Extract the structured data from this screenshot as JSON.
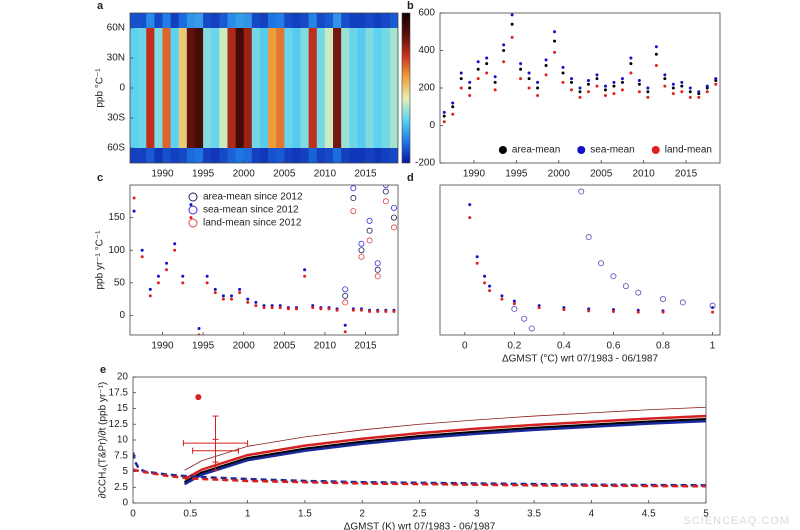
{
  "watermark": "SCIENCEAQ.COM",
  "chart_data": [
    {
      "panel": "a",
      "type": "heatmap",
      "x_edges": [
        1986,
        1987,
        1988,
        1989,
        1990,
        1991,
        1992,
        1993,
        1994,
        1995,
        1996,
        1997,
        1998,
        1999,
        2000,
        2001,
        2002,
        2003,
        2004,
        2005,
        2006,
        2007,
        2008,
        2009,
        2010,
        2011,
        2012,
        2013,
        2014,
        2015,
        2016,
        2017,
        2018,
        2019
      ],
      "y_edges": [
        -75,
        -60,
        60,
        75
      ],
      "z": [
        [
          -150,
          -150,
          -120,
          -160,
          -130,
          -150,
          -140,
          -100,
          -90,
          -150,
          -160,
          -140,
          -110,
          -90,
          -100,
          -150,
          -160,
          -130,
          -120,
          -150,
          -160,
          -150,
          -110,
          -150,
          -140,
          -100,
          -150,
          -160,
          -160,
          -150,
          -160,
          -150,
          -140
        ],
        [
          30,
          40,
          380,
          60,
          320,
          30,
          200,
          480,
          520,
          60,
          40,
          120,
          400,
          520,
          420,
          50,
          20,
          260,
          300,
          40,
          20,
          60,
          380,
          50,
          120,
          460,
          80,
          40,
          20,
          60,
          30,
          50,
          90
        ],
        [
          -130,
          -130,
          -60,
          -140,
          -80,
          -150,
          -100,
          -50,
          -40,
          -140,
          -150,
          -120,
          -60,
          -40,
          -50,
          -140,
          -150,
          -90,
          -80,
          -140,
          -150,
          -140,
          -70,
          -140,
          -120,
          -50,
          -130,
          -150,
          -150,
          -140,
          -150,
          -140,
          -120
        ]
      ],
      "zlim": [
        -200,
        600
      ],
      "colorscale": [
        "#0a14a0",
        "#1e78e6",
        "#5ad2f0",
        "#e6f0b4",
        "#f0a03c",
        "#c8321e",
        "#5a0f0a",
        "#140000"
      ],
      "xlim": [
        1986,
        2019
      ],
      "ylim": [
        -75,
        75
      ],
      "xticks": [
        1990,
        1995,
        2000,
        2005,
        2010,
        2015
      ],
      "yticks": [
        {
          "value": -60,
          "label": "60S"
        },
        {
          "value": -30,
          "label": "30S"
        },
        0,
        {
          "value": 30,
          "label": "30N"
        },
        {
          "value": 60,
          "label": "60N"
        }
      ],
      "ylabel": "ppb °C⁻¹"
    },
    {
      "panel": "b",
      "type": "scatter",
      "x": [
        1986.5,
        1987.5,
        1988.5,
        1989.5,
        1990.5,
        1991.5,
        1992.5,
        1993.5,
        1994.5,
        1995.5,
        1996.5,
        1997.5,
        1998.5,
        1999.5,
        2000.5,
        2001.5,
        2002.5,
        2003.5,
        2004.5,
        2005.5,
        2006.5,
        2007.5,
        2008.5,
        2009.5,
        2010.5,
        2011.5,
        2012.5,
        2013.5,
        2014.5,
        2015.5,
        2016.5,
        2017.5,
        2018.5
      ],
      "xlim": [
        1986,
        2019
      ],
      "ylim": [
        -200,
        600
      ],
      "xticks": [
        1990,
        1995,
        2000,
        2005,
        2010,
        2015
      ],
      "yticks": [
        -200,
        0,
        200,
        400,
        600
      ],
      "legend": "lower right",
      "series": [
        {
          "name": "area-mean",
          "color": "#000000",
          "marker": "dot",
          "values": [
            50,
            100,
            250,
            200,
            300,
            330,
            230,
            400,
            540,
            300,
            250,
            200,
            320,
            450,
            280,
            230,
            180,
            220,
            250,
            190,
            210,
            230,
            330,
            220,
            180,
            380,
            250,
            200,
            210,
            180,
            170,
            200,
            240
          ]
        },
        {
          "name": "sea-mean",
          "color": "#1010c8",
          "marker": "dot",
          "values": [
            70,
            120,
            280,
            230,
            340,
            360,
            260,
            430,
            590,
            330,
            280,
            230,
            350,
            500,
            310,
            250,
            200,
            240,
            270,
            210,
            230,
            250,
            360,
            240,
            200,
            420,
            270,
            220,
            230,
            200,
            180,
            210,
            250
          ]
        },
        {
          "name": "land-mean",
          "color": "#e02020",
          "marker": "dot",
          "values": [
            20,
            60,
            200,
            160,
            250,
            280,
            190,
            340,
            470,
            250,
            200,
            160,
            270,
            390,
            230,
            190,
            150,
            180,
            210,
            160,
            170,
            190,
            280,
            180,
            150,
            320,
            210,
            170,
            180,
            150,
            150,
            180,
            220
          ]
        }
      ]
    },
    {
      "panel": "c",
      "type": "scatter",
      "x": [
        1986.5,
        1987.5,
        1988.5,
        1989.5,
        1990.5,
        1991.5,
        1992.5,
        1993.5,
        1994.5,
        1995.5,
        1996.5,
        1997.5,
        1998.5,
        1999.5,
        2000.5,
        2001.5,
        2002.5,
        2003.5,
        2004.5,
        2005.5,
        2006.5,
        2007.5,
        2008.5,
        2009.5,
        2010.5,
        2011.5,
        2012.5,
        2013.5,
        2014.5,
        2015.5,
        2016.5,
        2017.5,
        2018.5
      ],
      "xlim": [
        1986,
        2019
      ],
      "ylim": [
        -30,
        200
      ],
      "xticks": [
        1990,
        1995,
        2000,
        2005,
        2010,
        2015
      ],
      "yticks": [
        0,
        50,
        100,
        150
      ],
      "ylabel": "ppb yr⁻¹ °C⁻¹",
      "legend": "upper right",
      "series": [
        {
          "color": "#1010c8",
          "marker": "dot",
          "values": [
            160,
            100,
            40,
            60,
            80,
            110,
            60,
            170,
            -20,
            60,
            40,
            30,
            30,
            40,
            25,
            20,
            15,
            15,
            15,
            12,
            12,
            70,
            15,
            12,
            12,
            10,
            -15,
            10,
            10,
            8,
            8,
            8,
            8
          ]
        },
        {
          "color": "#e02020",
          "marker": "dot",
          "values": [
            180,
            90,
            30,
            50,
            70,
            100,
            50,
            150,
            -30,
            50,
            35,
            25,
            25,
            35,
            20,
            15,
            12,
            12,
            12,
            10,
            10,
            60,
            12,
            10,
            10,
            8,
            -25,
            8,
            8,
            6,
            6,
            6,
            6
          ]
        },
        {
          "name": "area-mean since 2012",
          "color": "#202060",
          "marker": "open",
          "x": [
            2012.5,
            2013.5,
            2014.5,
            2015.5,
            2016.5,
            2017.5,
            2018.5
          ],
          "values": [
            30,
            180,
            100,
            130,
            70,
            190,
            150
          ]
        },
        {
          "name": "sea-mean since 2012",
          "color": "#3030e0",
          "marker": "open",
          "x": [
            2012.5,
            2013.5,
            2014.5,
            2015.5,
            2016.5,
            2017.5,
            2018.5
          ],
          "values": [
            40,
            195,
            110,
            145,
            80,
            200,
            165
          ]
        },
        {
          "name": "land-mean since 2012",
          "color": "#e04040",
          "marker": "open",
          "x": [
            2012.5,
            2013.5,
            2014.5,
            2015.5,
            2016.5,
            2017.5,
            2018.5
          ],
          "values": [
            20,
            160,
            90,
            115,
            60,
            175,
            135
          ]
        }
      ]
    },
    {
      "panel": "d",
      "type": "scatter",
      "xlim": [
        -0.1,
        1.03
      ],
      "ylim": [
        -30,
        200
      ],
      "xticks": [
        0,
        0.2,
        0.4,
        0.6,
        0.8,
        1
      ],
      "xlabel": "ΔGMST (°C) wrt 07/1983 - 06/1987",
      "series": [
        {
          "color": "#1010c8",
          "marker": "dot",
          "x": [
            0.02,
            0.05,
            0.08,
            0.1,
            0.15,
            0.2,
            0.3,
            0.4,
            0.5,
            0.6,
            0.7,
            0.8,
            1.0
          ],
          "values": [
            170,
            90,
            60,
            45,
            30,
            22,
            15,
            12,
            10,
            9,
            8,
            7,
            12
          ]
        },
        {
          "color": "#e02020",
          "marker": "dot",
          "x": [
            0.02,
            0.05,
            0.08,
            0.1,
            0.15,
            0.2,
            0.3,
            0.4,
            0.5,
            0.6,
            0.7,
            0.8,
            1.0
          ],
          "values": [
            150,
            80,
            50,
            38,
            25,
            18,
            12,
            9,
            7,
            6,
            5,
            5,
            5
          ]
        },
        {
          "color": "#5050c0",
          "marker": "open",
          "x": [
            0.2,
            0.24,
            0.27,
            0.47,
            0.5,
            0.55,
            0.6,
            0.65,
            0.7,
            0.8,
            0.88,
            1.0
          ],
          "values": [
            10,
            -5,
            -20,
            190,
            120,
            80,
            60,
            45,
            35,
            25,
            20,
            15
          ]
        }
      ]
    },
    {
      "panel": "e",
      "type": "line",
      "xlim": [
        0,
        5
      ],
      "ylim": [
        0,
        20
      ],
      "xticks": [
        0,
        0.5,
        1,
        1.5,
        2,
        2.5,
        3,
        3.5,
        4,
        4.5,
        5
      ],
      "yticks": [
        0,
        2.5,
        5,
        7.5,
        10,
        12.5,
        15,
        17.5,
        20
      ],
      "xlabel": "ΔGMST (K) wrt 07/1983 - 06/1987",
      "ylabel": "∂CCH₄(T&Pr)/∂t  (ppb yr⁻¹)",
      "series": [
        {
          "color": "#8b1a1a",
          "width": 0.8,
          "x": [
            0.45,
            0.6,
            1,
            1.5,
            2,
            2.5,
            3,
            3.5,
            4,
            4.5,
            5
          ],
          "values": [
            5.2,
            6.7,
            9,
            10.5,
            11.6,
            12.5,
            13.2,
            13.8,
            14.3,
            14.8,
            15.2
          ]
        },
        {
          "color": "#d42020",
          "width": 2.5,
          "x": [
            0.45,
            0.6,
            1,
            1.5,
            2,
            2.5,
            3,
            3.5,
            4,
            4.5,
            5
          ],
          "values": [
            3.8,
            5.3,
            7.6,
            9.1,
            10.2,
            11.1,
            11.8,
            12.4,
            12.9,
            13.4,
            13.8
          ]
        },
        {
          "color": "#000000",
          "width": 2.5,
          "x": [
            0.45,
            0.6,
            1,
            1.5,
            2,
            2.5,
            3,
            3.5,
            4,
            4.5,
            5
          ],
          "values": [
            3.3,
            4.8,
            7.1,
            8.6,
            9.7,
            10.6,
            11.3,
            11.9,
            12.4,
            12.9,
            13.3
          ]
        },
        {
          "color": "#1a2a9a",
          "width": 2.5,
          "x": [
            0.45,
            0.6,
            1,
            1.5,
            2,
            2.5,
            3,
            3.5,
            4,
            4.5,
            5
          ],
          "values": [
            3,
            4.5,
            6.8,
            8.3,
            9.4,
            10.3,
            11,
            11.6,
            12.1,
            12.6,
            13
          ]
        },
        {
          "color": "#1a2a9a",
          "width": 2.5,
          "dash": true,
          "x": [
            0,
            0.02,
            0.05,
            0.1,
            0.3,
            0.5,
            1,
            1.5,
            2,
            2.5,
            3,
            3.5,
            4,
            4.5,
            5
          ],
          "values": [
            8,
            6.5,
            5.5,
            5,
            4.5,
            4.2,
            3.8,
            3.5,
            3.3,
            3.2,
            3.1,
            3,
            2.9,
            2.85,
            2.8
          ]
        },
        {
          "color": "#d42020",
          "width": 2.5,
          "dash": true,
          "x": [
            0,
            0.02,
            0.05,
            0.1,
            0.3,
            0.5,
            1,
            1.5,
            2,
            2.5,
            3,
            3.5,
            4,
            4.5,
            5
          ],
          "values": [
            5.3,
            5.2,
            5.1,
            4.9,
            4.3,
            3.9,
            3.5,
            3.3,
            3.1,
            3,
            2.9,
            2.8,
            2.75,
            2.7,
            2.65
          ]
        },
        {
          "color": "#d42020",
          "marker": "dot",
          "size": 3,
          "x": [
            0.57
          ],
          "values": [
            16.8
          ]
        }
      ],
      "error_color": "#d42020",
      "error_bars": [
        {
          "x": 0.72,
          "y": 9.5,
          "xerr": 0.28,
          "yerr": 4.3
        },
        {
          "x": 0.72,
          "y": 8.3,
          "xerr": 0.2,
          "yerr": 1.8
        }
      ]
    }
  ]
}
